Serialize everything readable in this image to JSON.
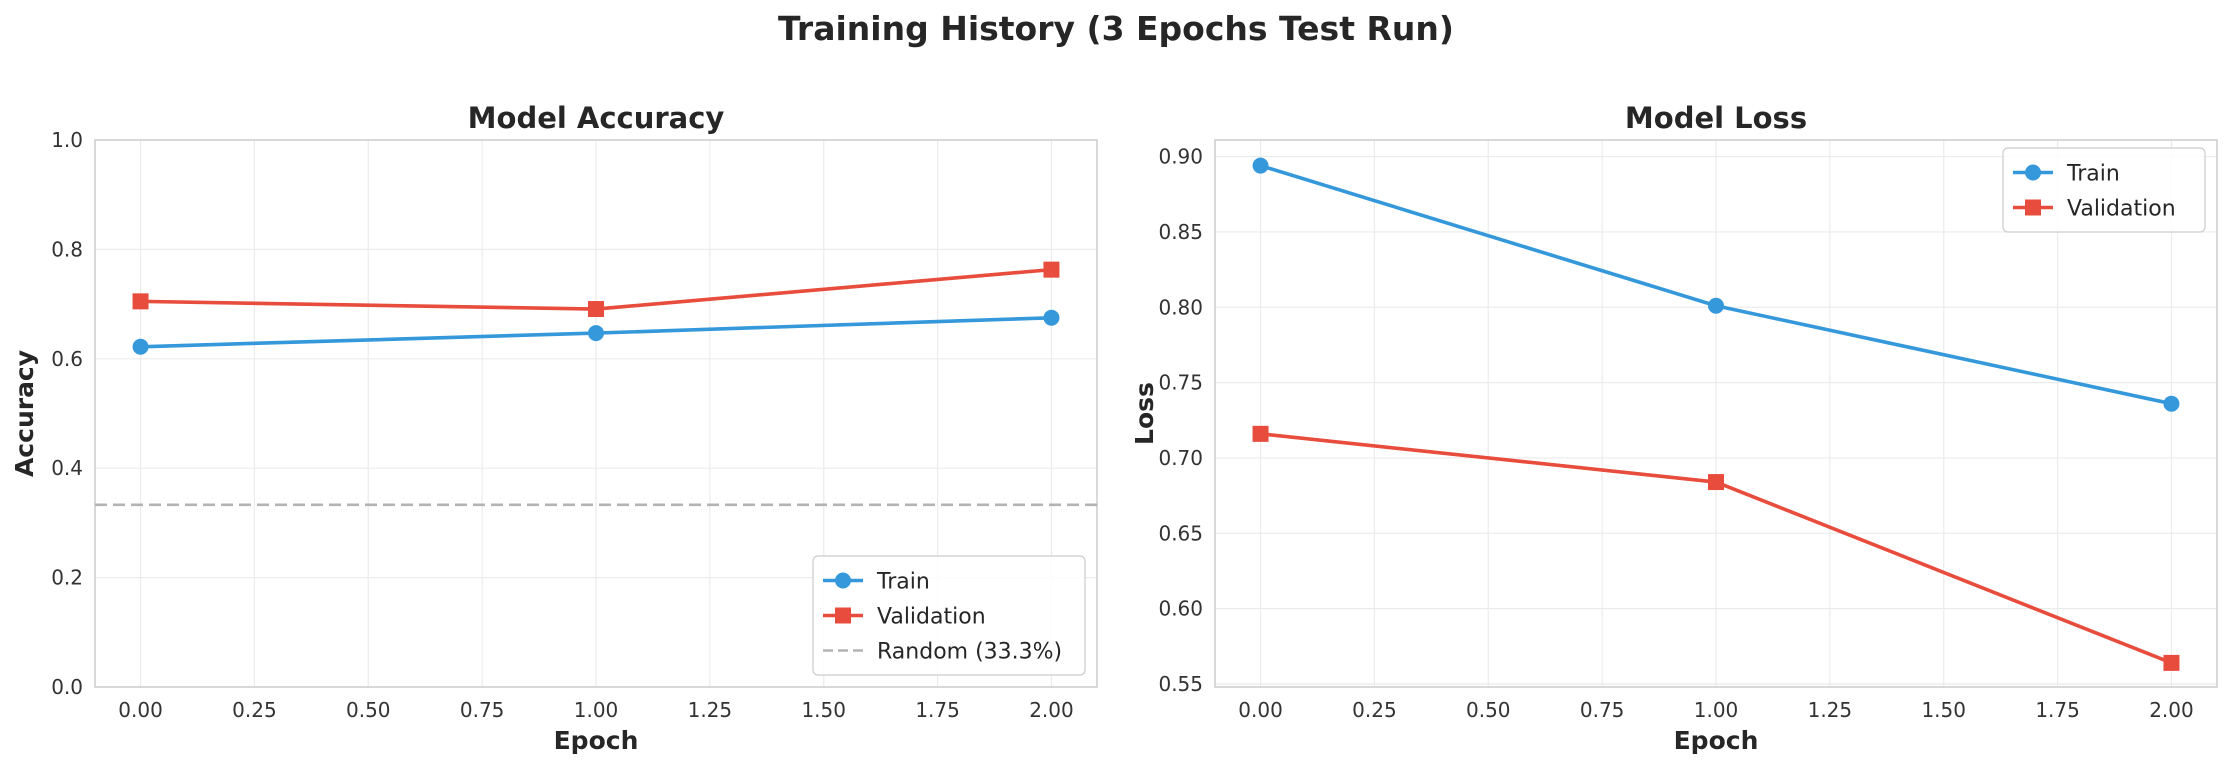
{
  "figure": {
    "title": "Training History (3 Epochs Test Run)"
  },
  "colors": {
    "train": "#3498db",
    "validation": "#e74c3c",
    "random": "#b3b3b3"
  },
  "chart_data": [
    {
      "type": "line",
      "title": "Model Accuracy",
      "xlabel": "Epoch",
      "ylabel": "Accuracy",
      "xlim": [
        -0.1,
        2.1
      ],
      "ylim": [
        0,
        1
      ],
      "xticks": [
        "0.00",
        "0.25",
        "0.50",
        "0.75",
        "1.00",
        "1.25",
        "1.50",
        "1.75",
        "2.00"
      ],
      "yticks": [
        "0.0",
        "0.2",
        "0.4",
        "0.6",
        "0.8",
        "1.0"
      ],
      "grid": true,
      "legend_position": "lower-right",
      "x": [
        0,
        1,
        2
      ],
      "series": [
        {
          "name": "Train",
          "marker": "circle",
          "values": [
            0.622,
            0.647,
            0.675
          ]
        },
        {
          "name": "Validation",
          "marker": "square",
          "values": [
            0.705,
            0.691,
            0.763
          ]
        }
      ],
      "reference_line": {
        "name": "Random (33.3%)",
        "y": 0.333,
        "style": "dashed"
      }
    },
    {
      "type": "line",
      "title": "Model Loss",
      "xlabel": "Epoch",
      "ylabel": "Loss",
      "xlim": [
        -0.1,
        2.1
      ],
      "ylim": [
        0.548,
        0.911
      ],
      "xticks": [
        "0.00",
        "0.25",
        "0.50",
        "0.75",
        "1.00",
        "1.25",
        "1.50",
        "1.75",
        "2.00"
      ],
      "yticks": [
        "0.55",
        "0.60",
        "0.65",
        "0.70",
        "0.75",
        "0.80",
        "0.85",
        "0.90"
      ],
      "grid": true,
      "legend_position": "upper-right",
      "x": [
        0,
        1,
        2
      ],
      "series": [
        {
          "name": "Train",
          "marker": "circle",
          "values": [
            0.894,
            0.801,
            0.736
          ]
        },
        {
          "name": "Validation",
          "marker": "square",
          "values": [
            0.716,
            0.684,
            0.564
          ]
        }
      ]
    }
  ]
}
